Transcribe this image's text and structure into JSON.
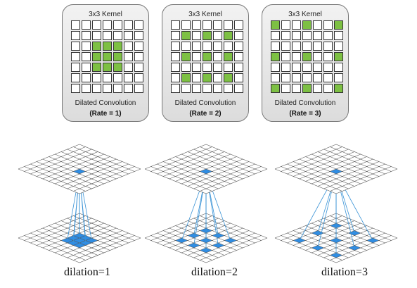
{
  "kernel_panels": [
    {
      "title": "3x3 Kernel",
      "caption": "Dilated Convolution",
      "rate": "(Rate = 1)",
      "dilation": 1
    },
    {
      "title": "3x3 Kernel",
      "caption": "Dilated Convolution",
      "rate": "(Rate = 2)",
      "dilation": 2
    },
    {
      "title": "3x3 Kernel",
      "caption": "Dilated Convolution",
      "rate": "(Rate = 3)",
      "dilation": 3
    }
  ],
  "grid_size": 7,
  "iso_diagrams": [
    {
      "label": "dilation=1",
      "dilation": 1
    },
    {
      "label": "dilation=2",
      "dilation": 2
    },
    {
      "label": "dilation=3",
      "dilation": 3
    }
  ],
  "colors": {
    "kernel_green": "#7dc043",
    "highlight_blue": "#2f8de4",
    "connector_blue": "#3a93d6",
    "grid_line": "#555555"
  }
}
